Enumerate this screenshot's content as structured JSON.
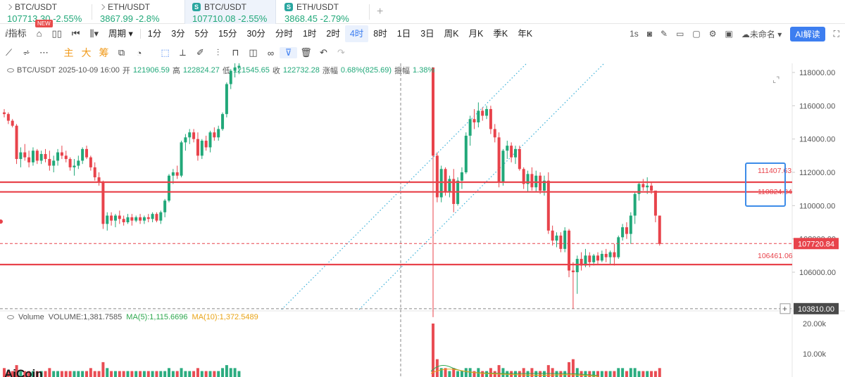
{
  "tabs": [
    {
      "symbol": "BTC/USDT",
      "price": "107713.30",
      "change": "-2.55%"
    },
    {
      "symbol": "ETH/USDT",
      "price": "3867.99",
      "change": "-2.8%"
    },
    {
      "symbol": "BTC/USDT",
      "price": "107710.08",
      "change": "-2.55%"
    },
    {
      "symbol": "ETH/USDT",
      "price": "3868.45",
      "change": "-2.79%"
    }
  ],
  "badge_new": "NEW",
  "toolbar": {
    "indicators": "指标",
    "period": "周期",
    "intervals": [
      "1分",
      "3分",
      "5分",
      "15分",
      "30分",
      "分时",
      "1时",
      "2时",
      "4时",
      "8时",
      "1日",
      "3日",
      "周K",
      "月K",
      "季K",
      "年K"
    ],
    "active_interval": "4时",
    "speed": "1s",
    "unnamed": "未命名",
    "ai": "AI解读"
  },
  "draw_toolbar": {
    "main": "主",
    "big": "大",
    "chips": "筹"
  },
  "legend": {
    "symbol": "BTC/USDT",
    "time": "2025-10-09 16:00",
    "open_label": "开",
    "open": "121906.59",
    "high_label": "高",
    "high": "122824.27",
    "low_label": "低",
    "low": "121545.65",
    "close_label": "收",
    "close": "122732.28",
    "chg_label": "涨幅",
    "chg": "0.68%(825.69)",
    "amp_label": "振幅",
    "amp": "1.38%"
  },
  "volume_legend": {
    "label": "Volume",
    "volume": "VOLUME:1,381.7585",
    "ma5": "MA(5):1,115.6696",
    "ma10": "MA(10):1,372.5489"
  },
  "logo": "AiCoin",
  "colors": {
    "up": "#21a879",
    "down": "#e8434b",
    "line": "#e8434b",
    "trend": "#3ab0d8",
    "price_tag": "#e8434b",
    "box": "#3d8ce8"
  },
  "chart_data": {
    "type": "candlestick",
    "title": "BTC/USDT 4时",
    "ylim": [
      102600,
      118500
    ],
    "y_ticks": [
      106000,
      108000,
      110000,
      112000,
      114000,
      116000,
      118000
    ],
    "y_tick_labels": [
      "106000.00",
      "108000.00",
      "110000.00",
      "112000.00",
      "114000.00",
      "116000.00",
      "118000.00"
    ],
    "horizontal_lines": [
      111407.63,
      110824.84,
      106461.06
    ],
    "horizontal_line_labels": [
      "111407.63",
      "110824.84",
      "106461.06"
    ],
    "current_price": 107720.84,
    "current_price_label": "107720.84",
    "crosshair_price": 103810.0,
    "crosshair_price_label": "103810.00",
    "volume_ticks": [
      "20.00k",
      "10.00k"
    ],
    "candles": [
      [
        115600,
        115800,
        115300,
        115500
      ],
      [
        115500,
        115600,
        114900,
        115100
      ],
      [
        115100,
        115200,
        114700,
        114800
      ],
      [
        114800,
        114900,
        112500,
        112800
      ],
      [
        112800,
        113500,
        112300,
        113200
      ],
      [
        113200,
        113700,
        112700,
        112900
      ],
      [
        112900,
        113300,
        112300,
        112600
      ],
      [
        112600,
        113500,
        112400,
        113300
      ],
      [
        113300,
        113400,
        112500,
        112700
      ],
      [
        112700,
        113300,
        112500,
        113100
      ],
      [
        113100,
        113400,
        112600,
        112800
      ],
      [
        112800,
        113300,
        112100,
        112400
      ],
      [
        112400,
        113000,
        112000,
        112700
      ],
      [
        112700,
        113400,
        112400,
        113200
      ],
      [
        113200,
        113600,
        112800,
        113000
      ],
      [
        113000,
        113300,
        112600,
        112800
      ],
      [
        112800,
        112900,
        112100,
        112300
      ],
      [
        112300,
        112800,
        111800,
        112400
      ],
      [
        112400,
        113000,
        112200,
        112700
      ],
      [
        112700,
        113500,
        112500,
        113400
      ],
      [
        113400,
        113600,
        112800,
        112900
      ],
      [
        112900,
        113000,
        112100,
        112300
      ],
      [
        112300,
        112600,
        111500,
        111700
      ],
      [
        111700,
        112000,
        111200,
        111400
      ],
      [
        111400,
        111500,
        108600,
        108900
      ],
      [
        108900,
        109600,
        108500,
        109400
      ],
      [
        109400,
        109600,
        108800,
        109100
      ],
      [
        109100,
        109500,
        108700,
        109400
      ],
      [
        109400,
        109700,
        108900,
        109200
      ],
      [
        109200,
        109400,
        108800,
        109000
      ],
      [
        109000,
        109500,
        108900,
        109300
      ],
      [
        109300,
        109500,
        108800,
        109100
      ],
      [
        109100,
        109400,
        109000,
        109300
      ],
      [
        109300,
        109500,
        108900,
        109100
      ],
      [
        109100,
        109400,
        108900,
        109300
      ],
      [
        109300,
        109500,
        109000,
        109200
      ],
      [
        109200,
        109600,
        109000,
        109500
      ],
      [
        109500,
        109600,
        109000,
        109100
      ],
      [
        109100,
        109700,
        108900,
        109600
      ],
      [
        109600,
        110400,
        109300,
        110300
      ],
      [
        110300,
        111900,
        110200,
        111800
      ],
      [
        111800,
        112200,
        111300,
        112000
      ],
      [
        112000,
        112400,
        111600,
        111800
      ],
      [
        111800,
        113900,
        111700,
        113800
      ],
      [
        113800,
        114300,
        113300,
        114100
      ],
      [
        114100,
        114600,
        113700,
        114400
      ],
      [
        114400,
        114600,
        113800,
        114000
      ],
      [
        114000,
        114400,
        112700,
        113000
      ],
      [
        113000,
        114000,
        112800,
        113900
      ],
      [
        113900,
        114200,
        113300,
        113500
      ],
      [
        113500,
        114500,
        113200,
        114400
      ],
      [
        114400,
        114700,
        113900,
        114100
      ],
      [
        114100,
        114800,
        113900,
        114600
      ],
      [
        114600,
        115600,
        114500,
        115500
      ],
      [
        115500,
        117400,
        115300,
        117300
      ],
      [
        117300,
        118200,
        117000,
        118100
      ],
      [
        118100,
        118600,
        117700,
        118300
      ],
      [
        118300,
        118700,
        117900,
        118400
      ]
    ],
    "candles_right": [
      [
        118300,
        118300,
        103300,
        113000
      ],
      [
        113000,
        113200,
        110200,
        110500
      ],
      [
        110500,
        112400,
        110200,
        112200
      ],
      [
        112200,
        112300,
        110600,
        110800
      ],
      [
        110800,
        111800,
        110500,
        111600
      ],
      [
        111600,
        112200,
        109600,
        110100
      ],
      [
        110100,
        111700,
        110000,
        111500
      ],
      [
        111500,
        112300,
        111000,
        112000
      ],
      [
        112000,
        114400,
        111900,
        114200
      ],
      [
        114200,
        115400,
        113600,
        115200
      ],
      [
        115200,
        115800,
        114600,
        115000
      ],
      [
        115000,
        116200,
        114700,
        115700
      ],
      [
        115700,
        115900,
        115100,
        115400
      ],
      [
        115400,
        116000,
        115200,
        115800
      ],
      [
        115800,
        116000,
        114300,
        114600
      ],
      [
        114600,
        114900,
        113800,
        114100
      ],
      [
        114100,
        114400,
        111100,
        111400
      ],
      [
        111400,
        113400,
        111200,
        113300
      ],
      [
        113300,
        113900,
        112800,
        113600
      ],
      [
        113600,
        113800,
        112600,
        112900
      ],
      [
        112900,
        113600,
        112500,
        113400
      ],
      [
        113400,
        113600,
        112100,
        112200
      ],
      [
        112200,
        112300,
        111000,
        111300
      ],
      [
        111300,
        112100,
        110800,
        111900
      ],
      [
        111900,
        112300,
        110900,
        111100
      ],
      [
        111100,
        112100,
        110800,
        111800
      ],
      [
        111800,
        112000,
        110700,
        110900
      ],
      [
        110900,
        111800,
        110600,
        111500
      ],
      [
        111500,
        112000,
        108300,
        108500
      ],
      [
        108500,
        108800,
        107600,
        107900
      ],
      [
        107900,
        108400,
        107500,
        108200
      ],
      [
        108200,
        108400,
        107200,
        107400
      ],
      [
        107400,
        108700,
        107200,
        108500
      ],
      [
        108500,
        108600,
        105700,
        106100
      ],
      [
        106100,
        106600,
        103800,
        106000
      ],
      [
        106000,
        107000,
        104700,
        106800
      ],
      [
        106800,
        107200,
        106100,
        106400
      ],
      [
        106400,
        107400,
        106300,
        107000
      ],
      [
        107000,
        107200,
        106300,
        106600
      ],
      [
        106600,
        107100,
        106400,
        107000
      ],
      [
        107000,
        107200,
        106500,
        106700
      ],
      [
        106700,
        107300,
        106600,
        107100
      ],
      [
        107100,
        107400,
        106600,
        106900
      ],
      [
        106900,
        107300,
        106500,
        107200
      ],
      [
        107200,
        107700,
        106400,
        106900
      ],
      [
        106900,
        108200,
        106800,
        108100
      ],
      [
        108100,
        108900,
        107900,
        108700
      ],
      [
        108700,
        109000,
        108000,
        108300
      ],
      [
        108300,
        109600,
        107700,
        109400
      ],
      [
        109400,
        110800,
        108900,
        110700
      ],
      [
        110700,
        111400,
        110300,
        111300
      ],
      [
        111300,
        111600,
        110900,
        111100
      ],
      [
        111100,
        111700,
        110700,
        111200
      ],
      [
        111200,
        111400,
        110700,
        110900
      ],
      [
        110900,
        110900,
        109000,
        109400
      ],
      [
        109400,
        109400,
        107600,
        107700
      ]
    ],
    "volumes": [
      3,
      2,
      2,
      4,
      2,
      2,
      2,
      2,
      2,
      2,
      2,
      3,
      2,
      2,
      2,
      2,
      2,
      2,
      2,
      2,
      2,
      3,
      2,
      2,
      5,
      3,
      2,
      2,
      2,
      2,
      2,
      2,
      2,
      2,
      2,
      2,
      2,
      2,
      2,
      2,
      3,
      2,
      2,
      3,
      2,
      2,
      2,
      3,
      2,
      2,
      2,
      2,
      2,
      3,
      4,
      3,
      3,
      2
    ],
    "volumes_right": [
      18,
      6,
      3,
      3,
      2,
      3,
      2,
      2,
      3,
      3,
      2,
      3,
      2,
      2,
      3,
      2,
      4,
      3,
      2,
      2,
      2,
      2,
      3,
      2,
      3,
      2,
      2,
      2,
      4,
      3,
      2,
      2,
      2,
      5,
      6,
      3,
      2,
      2,
      2,
      2,
      2,
      2,
      2,
      2,
      2,
      3,
      3,
      2,
      3,
      3,
      2,
      2,
      2,
      2,
      2,
      3
    ]
  }
}
